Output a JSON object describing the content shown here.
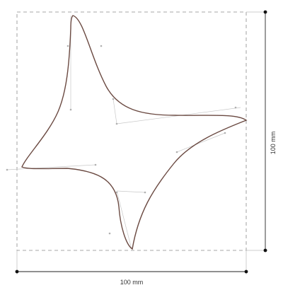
{
  "dimensions": {
    "width_label": "100 mm",
    "height_label": "100 mm"
  },
  "colors": {
    "frame": "#8a8a8a",
    "shape_outline": "#6b4a42",
    "control_lines": "#c8c8c8",
    "dimension_lines": "#222222"
  },
  "figure": {
    "shape_name": "four-point-star-curve"
  }
}
